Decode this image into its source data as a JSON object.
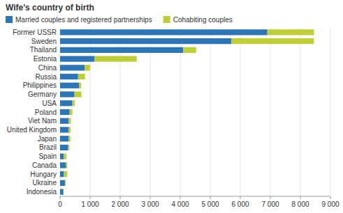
{
  "chart_data": {
    "type": "bar",
    "orientation": "horizontal",
    "stacked": true,
    "title": "Wife's country of birth",
    "categories": [
      "Indonesia",
      "Ukraine",
      "Hungary",
      "Canada",
      "Spain",
      "Brazil",
      "Japan",
      "United Kingdom",
      "Viet Nam",
      "Poland",
      "USA",
      "Germany",
      "Philippines",
      "Russia",
      "China",
      "Estonia",
      "Thailand",
      "Sweden",
      "Former USSR"
    ],
    "series": [
      {
        "name": "Married couples and registered partnerships",
        "color": "#2E75B6",
        "values": [
          110,
          160,
          130,
          200,
          120,
          270,
          290,
          290,
          290,
          320,
          410,
          480,
          630,
          600,
          820,
          1150,
          4100,
          5700,
          6900
        ]
      },
      {
        "name": "Cohabiting couples",
        "color": "#BFCE38",
        "values": [
          15,
          30,
          110,
          40,
          90,
          40,
          50,
          60,
          70,
          90,
          80,
          230,
          70,
          230,
          180,
          1400,
          430,
          2750,
          1550
        ]
      }
    ],
    "xlim": [
      0,
      9000
    ],
    "xticks": [
      0,
      {
        "value": 1000,
        "label": "1 000"
      },
      {
        "value": 2000,
        "label": "2 000"
      },
      {
        "value": 3000,
        "label": "3 000"
      },
      {
        "value": 4000,
        "label": "4 000"
      },
      {
        "value": 5000,
        "label": "5 000"
      },
      {
        "value": 6000,
        "label": "6 000"
      },
      {
        "value": 7000,
        "label": "7 000"
      },
      {
        "value": 8000,
        "label": "8 000"
      },
      {
        "value": 9000,
        "label": "9 000"
      }
    ],
    "grid": true,
    "legend": "top"
  }
}
